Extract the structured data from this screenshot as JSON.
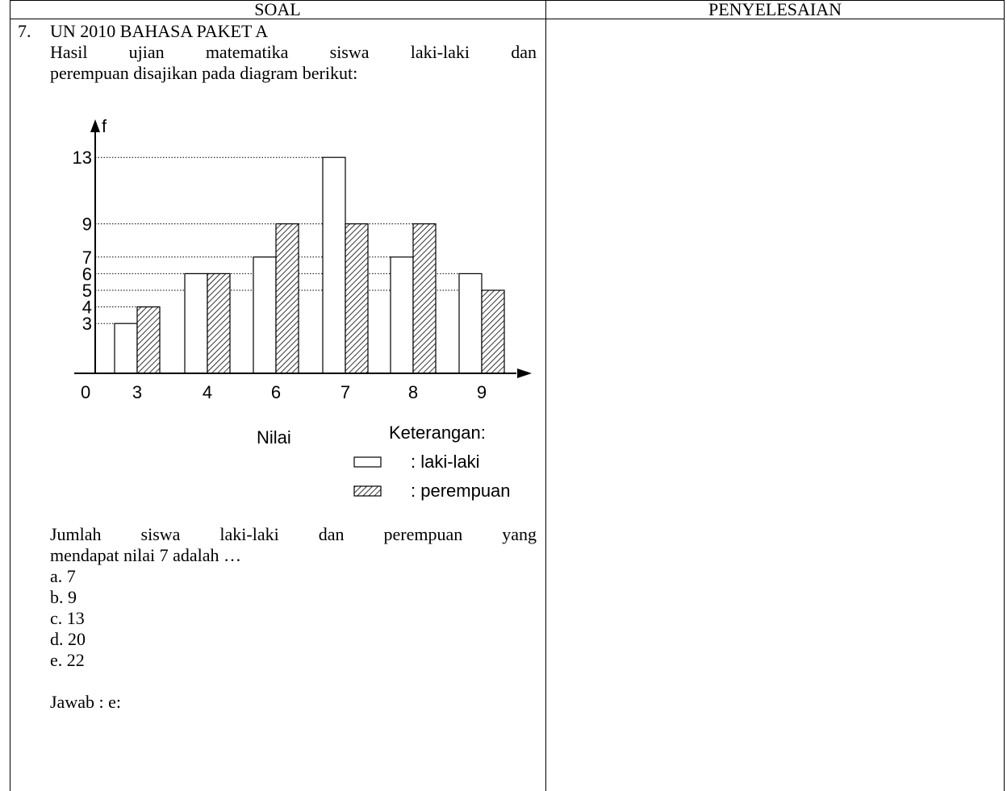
{
  "table": {
    "headers": {
      "soal": "SOAL",
      "penyelesaian": "PENYELESAIAN"
    }
  },
  "question": {
    "number": "7.",
    "title": "UN 2010 BAHASA PAKET A",
    "intro_line1": "Hasil ujian matematika siswa laki-laki dan",
    "intro_line2": "perempuan disajikan pada diagram berikut:",
    "prompt_line1": "Jumlah siswa laki-laki dan perempuan yang",
    "prompt_line2": "mendapat nilai 7 adalah …",
    "options": [
      "a. 7",
      "b. 9",
      "c. 13",
      "d. 20",
      "e. 22"
    ],
    "answer": "Jawab : e:"
  },
  "chart_data": {
    "type": "bar",
    "categories": [
      "3",
      "4",
      "6",
      "7",
      "8",
      "9"
    ],
    "series": [
      {
        "name": ": laki-laki",
        "values": [
          3,
          6,
          7,
          13,
          7,
          6
        ],
        "fill": "#ffffff"
      },
      {
        "name": ": perempuan",
        "values": [
          4,
          6,
          9,
          9,
          9,
          5
        ],
        "fill": "hatch"
      }
    ],
    "ylabel": "f",
    "xlabel": "Nilai",
    "origin_label": "0",
    "y_ticks": [
      "3",
      "4",
      "5",
      "6",
      "7",
      "9",
      "13"
    ],
    "ylim": [
      0,
      13
    ],
    "legend_title": "Keterangan:",
    "gridlines": "dotted"
  }
}
